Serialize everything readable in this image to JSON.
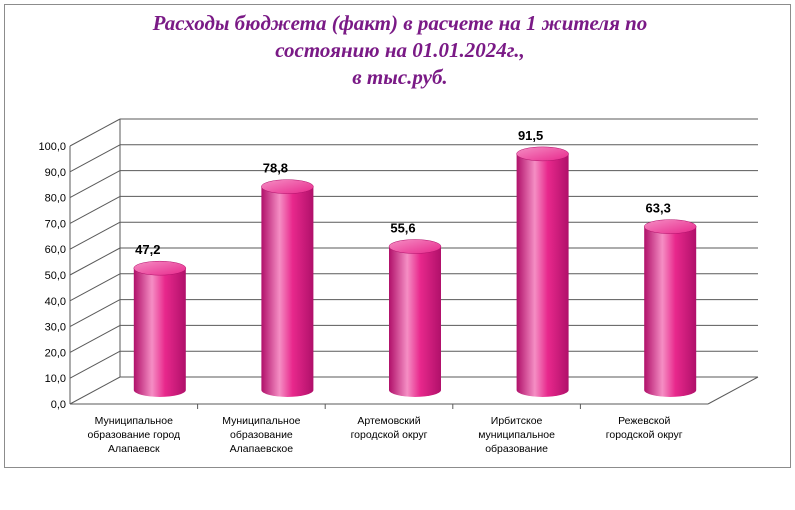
{
  "title": {
    "line1": "Расходы бюджета (факт) в расчете на 1 жителя по",
    "line2": "состоянию на 01.01.2024г.,",
    "line3": "в тыс.руб."
  },
  "colors": {
    "bar": "#e8288c",
    "bar_dark": "#b0106a",
    "bar_light": "#f58ec4",
    "title": "#7a1a86",
    "grid": "#5a5a5a"
  },
  "chart_data": {
    "type": "bar",
    "style": "3d-cylinder",
    "categories": [
      [
        "Муниципальное",
        "образование город",
        "Алапаевск"
      ],
      [
        "Муниципальное",
        "образование",
        "Алапаевское"
      ],
      [
        "Артемовский",
        "городской округ"
      ],
      [
        "Ирбитское",
        "муниципальное",
        "образование"
      ],
      [
        "Режевской",
        "городской округ"
      ]
    ],
    "values": [
      47.2,
      78.8,
      55.6,
      91.5,
      63.3
    ],
    "value_labels": [
      "47,2",
      "78,8",
      "55,6",
      "91,5",
      "63,3"
    ],
    "y_ticks": [
      "0,0",
      "10,0",
      "20,0",
      "30,0",
      "40,0",
      "50,0",
      "60,0",
      "70,0",
      "80,0",
      "90,0",
      "100,0"
    ],
    "ylim": [
      0,
      100
    ],
    "grid": true,
    "legend": "none"
  }
}
